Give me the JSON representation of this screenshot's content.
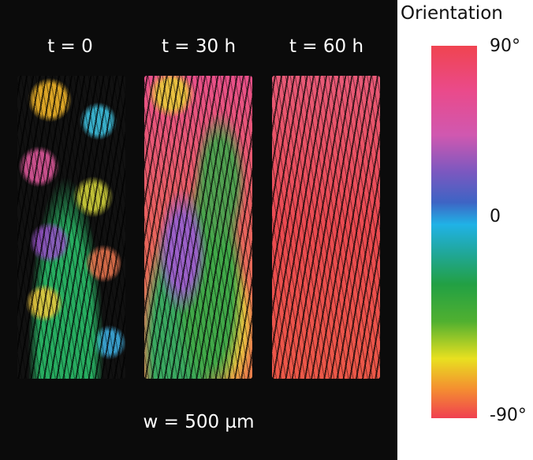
{
  "panels": [
    {
      "label": "t = 0"
    },
    {
      "label": "t = 30 h"
    },
    {
      "label": "t = 60 h"
    }
  ],
  "scale_label": "w = 500 µm",
  "colorbar": {
    "title": "Orientation",
    "ticks": [
      "90°",
      "0",
      "-90°"
    ]
  }
}
